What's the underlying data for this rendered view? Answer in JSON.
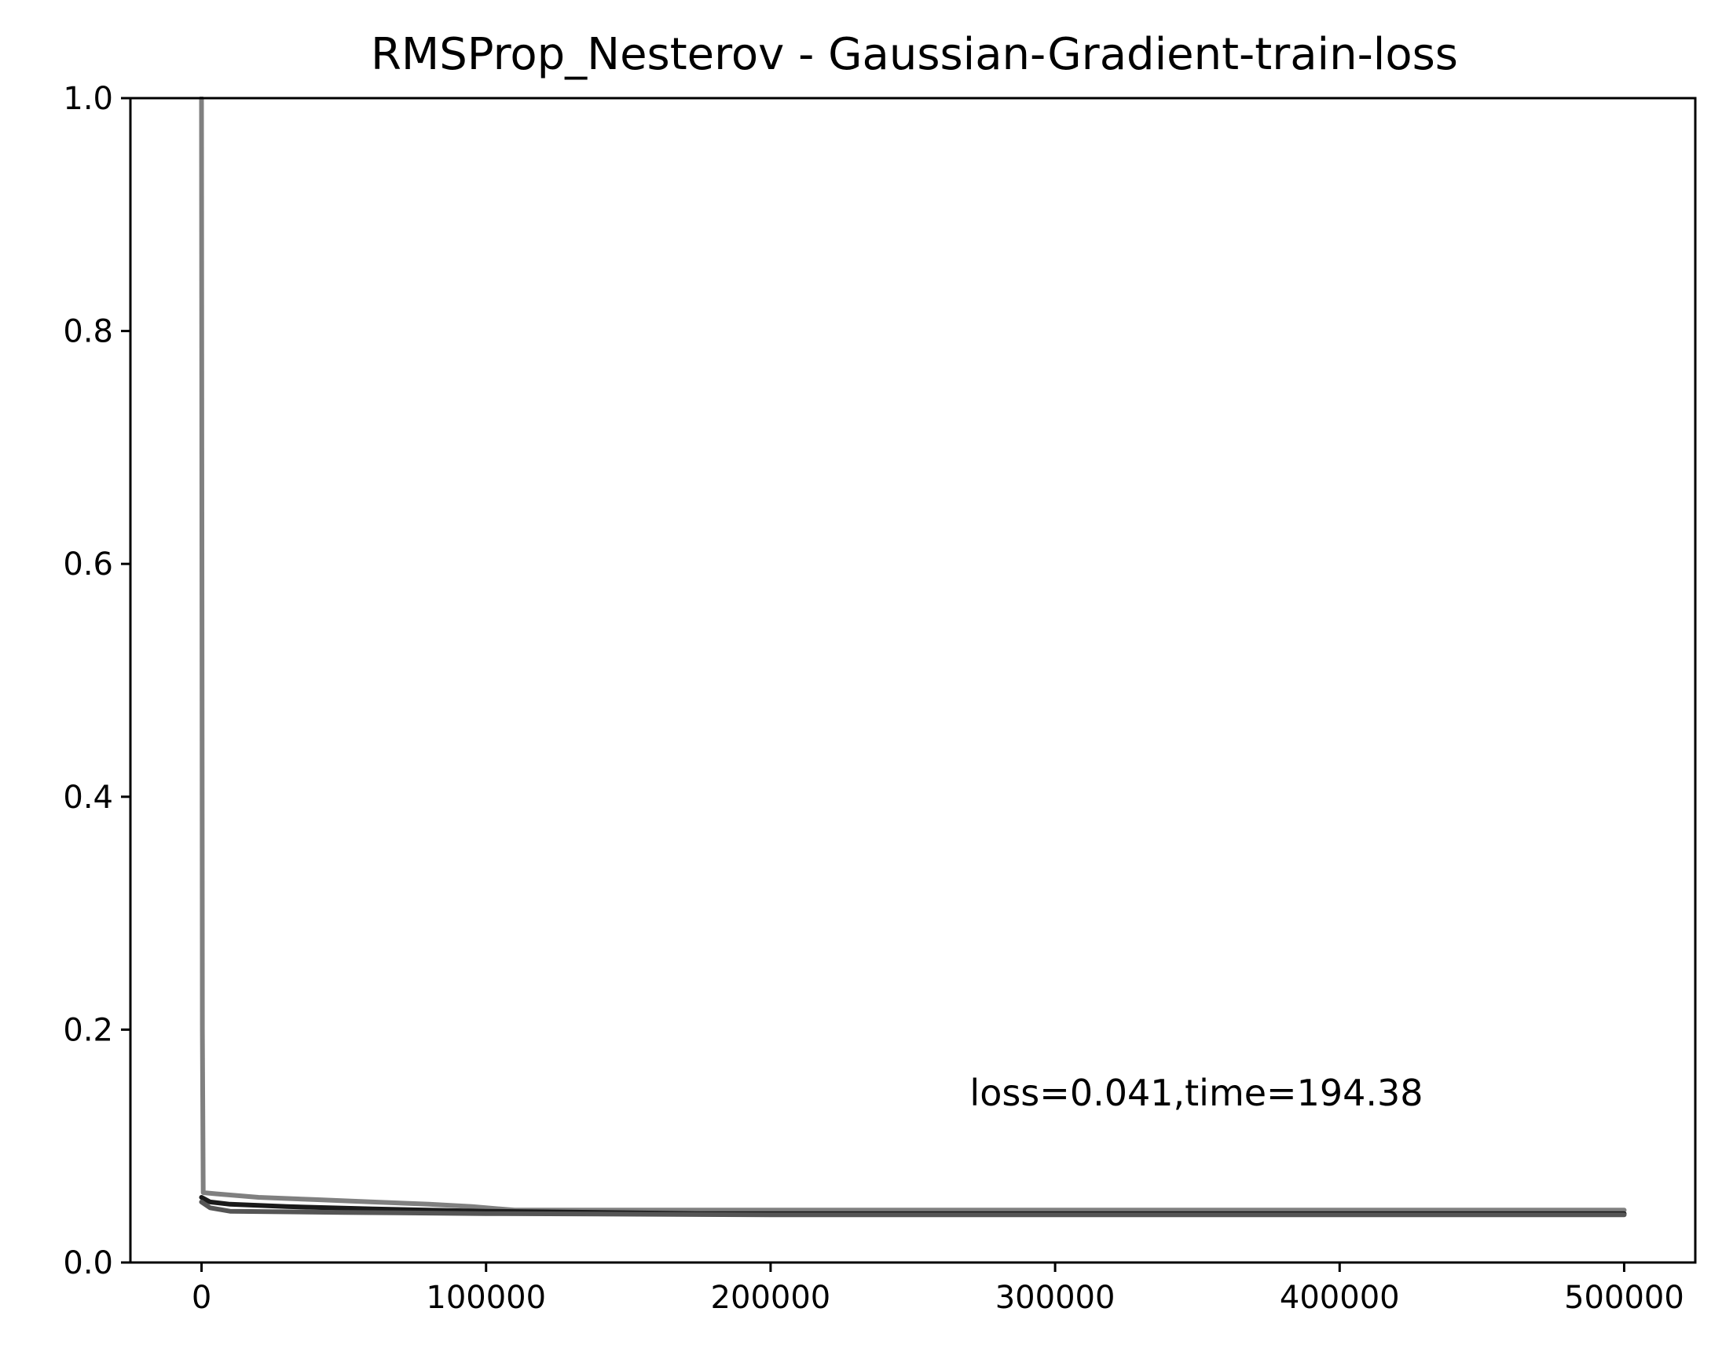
{
  "chart_data": {
    "type": "line",
    "title": "RMSProp_Nesterov - Gaussian-Gradient-train-loss",
    "xlabel": "",
    "ylabel": "",
    "xlim": [
      -25000,
      525000
    ],
    "ylim": [
      0.0,
      1.0
    ],
    "x_ticks": [
      0,
      100000,
      200000,
      300000,
      400000,
      500000
    ],
    "x_tick_labels": [
      "0",
      "100000",
      "200000",
      "300000",
      "400000",
      "500000"
    ],
    "y_ticks": [
      0.0,
      0.2,
      0.4,
      0.6,
      0.8,
      1.0
    ],
    "y_tick_labels": [
      "0.0",
      "0.2",
      "0.4",
      "0.6",
      "0.8",
      "1.0"
    ],
    "grid": false,
    "annotation": {
      "text": "loss=0.041,time=194.38",
      "x": 270000,
      "y": 0.135
    },
    "series": [
      {
        "color": "#808080",
        "points": [
          [
            0,
            1.0
          ],
          [
            300,
            0.2
          ],
          [
            600,
            0.06
          ],
          [
            5000,
            0.059
          ],
          [
            10000,
            0.058
          ],
          [
            20000,
            0.056
          ],
          [
            40000,
            0.054
          ],
          [
            60000,
            0.052
          ],
          [
            80000,
            0.05
          ],
          [
            95000,
            0.048
          ],
          [
            110000,
            0.045
          ],
          [
            200000,
            0.045
          ],
          [
            300000,
            0.045
          ],
          [
            400000,
            0.045
          ],
          [
            500000,
            0.045
          ]
        ]
      },
      {
        "color": "#1a1a1a",
        "points": [
          [
            0,
            0.056
          ],
          [
            3000,
            0.052
          ],
          [
            10000,
            0.05
          ],
          [
            30000,
            0.048
          ],
          [
            60000,
            0.046
          ],
          [
            100000,
            0.044
          ],
          [
            175000,
            0.042
          ],
          [
            300000,
            0.042
          ],
          [
            500000,
            0.042
          ]
        ]
      },
      {
        "color": "#555555",
        "points": [
          [
            0,
            0.052
          ],
          [
            3000,
            0.047
          ],
          [
            10000,
            0.044
          ],
          [
            50000,
            0.043
          ],
          [
            100000,
            0.042
          ],
          [
            200000,
            0.041
          ],
          [
            300000,
            0.041
          ],
          [
            500000,
            0.041
          ]
        ]
      }
    ]
  }
}
